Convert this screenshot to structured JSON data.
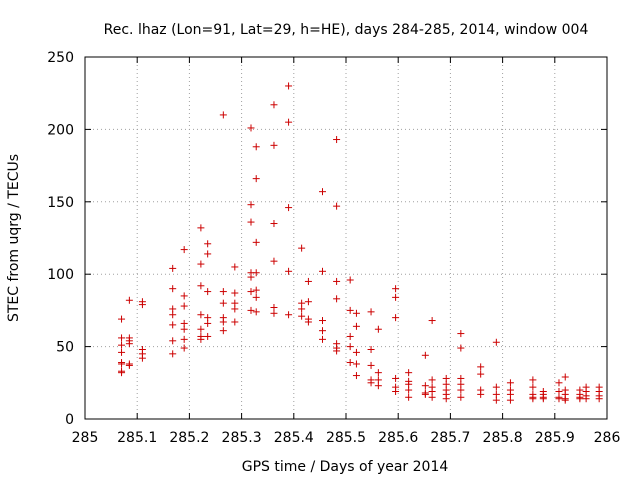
{
  "chart_data": {
    "type": "scatter",
    "title": "Rec. lhaz (Lon=91, Lat=29, h=HE), days 284-285, 2014, window 004",
    "xlabel": "GPS time / Days of year 2014",
    "ylabel": "STEC from uqrg / TECUs",
    "xlim": [
      285,
      286
    ],
    "ylim": [
      0,
      250
    ],
    "xticks": [
      "285",
      "285.1",
      "285.2",
      "285.3",
      "285.4",
      "285.5",
      "285.6",
      "285.7",
      "285.8",
      "285.9",
      "286"
    ],
    "yticks": [
      "0",
      "50",
      "100",
      "150",
      "200",
      "250"
    ],
    "grid": true,
    "marker": "plus",
    "color": "#cc0000",
    "series": [
      {
        "x": [
          285.07,
          285.07,
          285.07,
          285.07,
          285.07,
          285.07,
          285.07,
          285.07,
          285.085,
          285.085,
          285.085,
          285.085,
          285.085,
          285.085,
          285.11,
          285.11,
          285.11,
          285.11,
          285.11,
          285.168,
          285.168,
          285.168,
          285.168,
          285.168,
          285.168,
          285.168,
          285.19,
          285.19,
          285.19,
          285.19,
          285.19,
          285.19,
          285.19,
          285.222,
          285.222,
          285.222,
          285.222,
          285.222,
          285.222,
          285.222,
          285.235,
          285.235,
          285.235,
          285.235,
          285.235,
          285.235,
          285.265,
          285.265,
          285.265,
          285.265,
          285.265,
          285.265,
          285.287,
          285.287,
          285.287,
          285.287,
          285.287,
          285.318,
          285.318,
          285.318,
          285.318,
          285.318,
          285.318,
          285.318,
          285.328,
          285.328,
          285.328,
          285.328,
          285.328,
          285.328,
          285.328,
          285.362,
          285.362,
          285.362,
          285.362,
          285.362,
          285.362,
          285.39,
          285.39,
          285.39,
          285.39,
          285.39,
          285.415,
          285.415,
          285.415,
          285.415,
          285.428,
          285.428,
          285.428,
          285.428,
          285.455,
          285.455,
          285.455,
          285.455,
          285.455,
          285.482,
          285.482,
          285.482,
          285.482,
          285.482,
          285.482,
          285.482,
          285.508,
          285.508,
          285.508,
          285.508,
          285.508,
          285.52,
          285.52,
          285.52,
          285.52,
          285.52,
          285.548,
          285.548,
          285.548,
          285.548,
          285.548,
          285.562,
          285.562,
          285.562,
          285.562,
          285.595,
          285.595,
          285.595,
          285.595,
          285.595,
          285.595,
          285.62,
          285.62,
          285.62,
          285.62,
          285.62,
          285.652,
          285.652,
          285.652,
          285.652,
          285.665,
          285.665,
          285.665,
          285.665,
          285.665,
          285.692,
          285.692,
          285.692,
          285.692,
          285.692,
          285.72,
          285.72,
          285.72,
          285.72,
          285.72,
          285.72,
          285.758,
          285.758,
          285.758,
          285.758,
          285.788,
          285.788,
          285.788,
          285.788,
          285.815,
          285.815,
          285.815,
          285.815,
          285.858,
          285.858,
          285.858,
          285.858,
          285.858,
          285.878,
          285.878,
          285.878,
          285.878,
          285.908,
          285.908,
          285.908,
          285.908,
          285.92,
          285.92,
          285.92,
          285.92,
          285.92,
          285.948,
          285.948,
          285.948,
          285.948,
          285.96,
          285.96,
          285.96,
          285.96,
          285.985,
          285.985,
          285.985,
          285.985
        ],
        "y": [
          69,
          56,
          51,
          46,
          39,
          38,
          33,
          32,
          82,
          56,
          54,
          52,
          38,
          37,
          81,
          79,
          48,
          45,
          42,
          104,
          90,
          76,
          72,
          65,
          54,
          45,
          117,
          85,
          78,
          66,
          62,
          55,
          49,
          132,
          107,
          92,
          72,
          62,
          57,
          55,
          121,
          114,
          88,
          70,
          66,
          57,
          210,
          88,
          80,
          70,
          67,
          61,
          105,
          87,
          80,
          76,
          67,
          201,
          148,
          136,
          101,
          98,
          88,
          75,
          188,
          166,
          122,
          101,
          89,
          84,
          74,
          217,
          189,
          135,
          109,
          77,
          73,
          230,
          205,
          146,
          102,
          72,
          118,
          80,
          76,
          71,
          95,
          81,
          69,
          67,
          157,
          102,
          68,
          61,
          55,
          193,
          147,
          95,
          83,
          52,
          49,
          47,
          96,
          75,
          57,
          50,
          39,
          73,
          64,
          46,
          38,
          30,
          74,
          48,
          37,
          27,
          25,
          62,
          32,
          27,
          23,
          90,
          84,
          70,
          28,
          22,
          19,
          32,
          26,
          24,
          20,
          15,
          44,
          23,
          18,
          17,
          68,
          27,
          22,
          19,
          15,
          28,
          24,
          20,
          17,
          14,
          59,
          49,
          28,
          24,
          20,
          15,
          36,
          31,
          20,
          17,
          53,
          22,
          17,
          13,
          25,
          20,
          17,
          13,
          27,
          22,
          17,
          15,
          14,
          19,
          17,
          15,
          14,
          25,
          19,
          15,
          14,
          29,
          20,
          17,
          14,
          13,
          20,
          17,
          15,
          14,
          22,
          19,
          16,
          14,
          22,
          19,
          16,
          14
        ]
      }
    ]
  }
}
